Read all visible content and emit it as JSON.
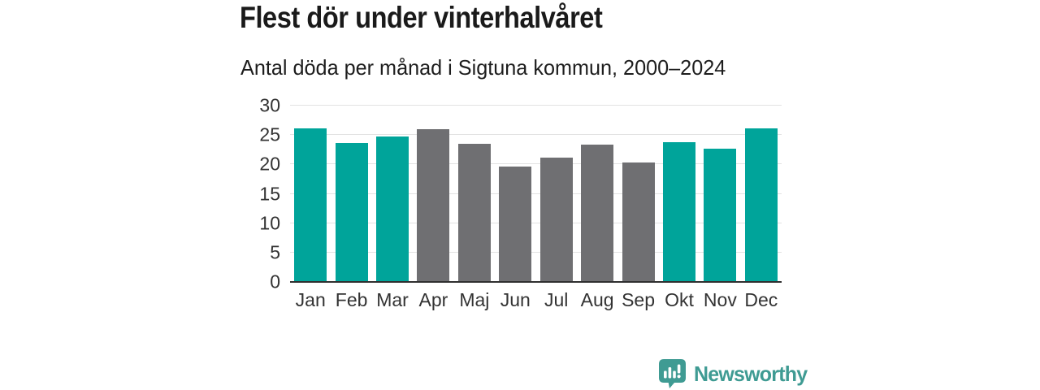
{
  "chart_data": {
    "type": "bar",
    "title": "Flest dör under vinterhalvåret",
    "subtitle": "Antal döda per månad i Sigtuna kommun, 2000–2024",
    "categories": [
      "Jan",
      "Feb",
      "Mar",
      "Apr",
      "Maj",
      "Jun",
      "Jul",
      "Aug",
      "Sep",
      "Okt",
      "Nov",
      "Dec"
    ],
    "values": [
      26.1,
      23.7,
      24.8,
      26.0,
      23.5,
      19.7,
      21.1,
      23.3,
      20.3,
      23.8,
      22.7,
      26.2
    ],
    "bar_colors": [
      "#00a49a",
      "#00a49a",
      "#00a49a",
      "#6f6f72",
      "#6f6f72",
      "#6f6f72",
      "#6f6f72",
      "#6f6f72",
      "#6f6f72",
      "#00a49a",
      "#00a49a",
      "#00a49a"
    ],
    "highlight_color": "#00a49a",
    "muted_color": "#6f6f72",
    "xlabel": "",
    "ylabel": "",
    "ylim": [
      0,
      30
    ],
    "yticks": [
      0,
      5,
      10,
      15,
      20,
      25,
      30
    ],
    "grid": true,
    "grid_color": "#e2e2e2",
    "axis_color": "#2f2f2f",
    "tick_text_color": "#333333",
    "legend": false
  },
  "footer": {
    "brand": "Newsworthy",
    "brand_color": "#3f9b93"
  }
}
